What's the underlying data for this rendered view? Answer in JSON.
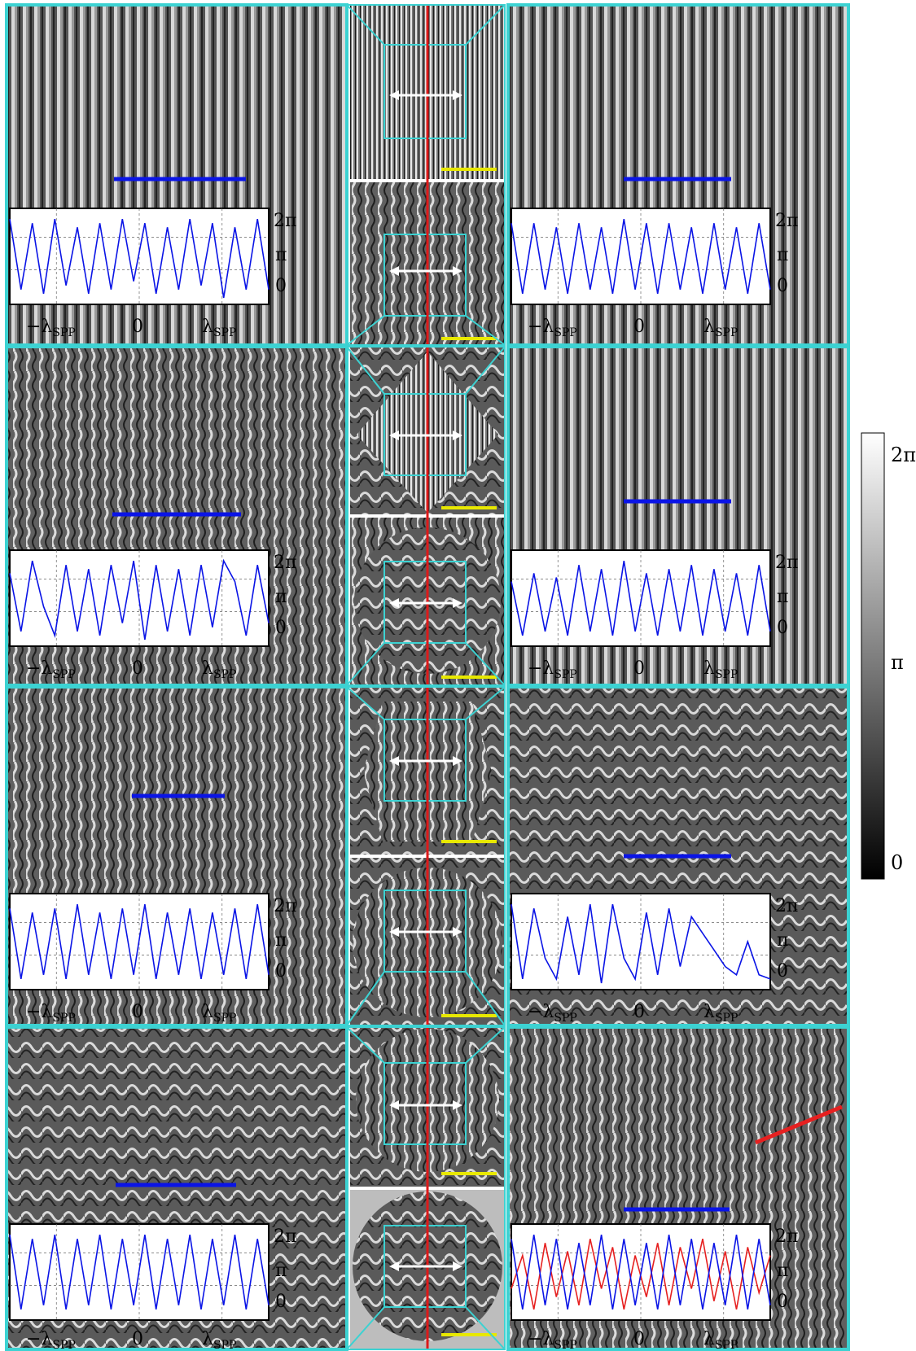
{
  "figure": {
    "plot_y_ticks": [
      "2π",
      "π",
      "0"
    ],
    "plot_x_ticks": {
      "neg": "−λ",
      "neg_sub": "SPP",
      "zero": "0",
      "pos": "λ",
      "pos_sub": "SPP"
    },
    "colorbar": {
      "labels": [
        "2π",
        "π",
        "0"
      ],
      "range": "0 to 2π",
      "gradient": [
        "#000000",
        "#ffffff"
      ]
    },
    "colors": {
      "frame": "#3cd2d2",
      "blue_line": "#0a14e6",
      "red_line": "#e62020",
      "yellow_bar": "#e8e800",
      "arrow": "#ffffff",
      "center_red": "#dd1a1a"
    }
  },
  "chart_data": {
    "type": "line",
    "panels": [
      {
        "row": 1,
        "side": "left",
        "series": [
          {
            "values": [
              0.95,
              0.1,
              0.9,
              0.05,
              0.95,
              0.15,
              0.85,
              0.05,
              0.9,
              0.1,
              0.95,
              0.2,
              0.9,
              0.05,
              0.85,
              0.1,
              0.95,
              0.15,
              0.9,
              0.0,
              0.85,
              0.1,
              0.95,
              0.1
            ]
          }
        ]
      },
      {
        "row": 1,
        "side": "right",
        "series": [
          {
            "values": [
              0.9,
              0.05,
              0.9,
              0.1,
              0.85,
              0.05,
              0.9,
              0.1,
              0.85,
              0.05,
              0.95,
              0.1,
              0.9,
              0.05,
              0.9,
              0.1,
              0.85,
              0.05,
              0.9,
              0.1,
              0.85,
              0.05,
              0.9,
              0.1
            ]
          }
        ]
      },
      {
        "row": 2,
        "side": "left",
        "series": [
          {
            "values": [
              0.8,
              0.1,
              0.95,
              0.4,
              0.05,
              0.9,
              0.1,
              0.85,
              0.05,
              0.9,
              0.2,
              0.95,
              0.0,
              0.9,
              0.1,
              0.85,
              0.05,
              0.9,
              0.15,
              0.95,
              0.7,
              0.05,
              0.9,
              0.2
            ]
          }
        ]
      },
      {
        "row": 2,
        "side": "right",
        "series": [
          {
            "values": [
              0.7,
              0.05,
              0.8,
              0.1,
              0.75,
              0.05,
              0.9,
              0.1,
              0.85,
              0.05,
              0.95,
              0.1,
              0.8,
              0.05,
              0.85,
              0.1,
              0.9,
              0.05,
              0.85,
              0.1,
              0.8,
              0.05,
              0.9,
              0.1
            ]
          }
        ]
      },
      {
        "row": 3,
        "side": "left",
        "series": [
          {
            "values": [
              0.9,
              0.05,
              0.85,
              0.1,
              0.9,
              0.05,
              0.95,
              0.1,
              0.85,
              0.05,
              0.9,
              0.1,
              0.95,
              0.05,
              0.85,
              0.1,
              0.9,
              0.05,
              0.85,
              0.1,
              0.9,
              0.05,
              0.95,
              0.1
            ]
          }
        ]
      },
      {
        "row": 3,
        "side": "right",
        "series": [
          {
            "values": [
              0.95,
              0.05,
              0.9,
              0.3,
              0.05,
              0.8,
              0.1,
              0.95,
              0.0,
              0.95,
              0.3,
              0.05,
              0.85,
              0.1,
              0.9,
              0.2,
              0.8,
              0.6,
              0.4,
              0.2,
              0.1,
              0.5,
              0.1,
              0.05
            ]
          }
        ]
      },
      {
        "row": 4,
        "side": "left",
        "series": [
          {
            "values": [
              0.95,
              0.05,
              0.9,
              0.1,
              0.95,
              0.05,
              0.9,
              0.1,
              0.95,
              0.05,
              0.9,
              0.1,
              0.95,
              0.05,
              0.9,
              0.1,
              0.95,
              0.05,
              0.9,
              0.1,
              0.95,
              0.05,
              0.9,
              0.1
            ]
          }
        ]
      },
      {
        "row": 4,
        "side": "right",
        "series": [
          {
            "values": [
              0.9,
              0.05,
              0.95,
              0.1,
              0.9,
              0.05,
              0.85,
              0.1,
              0.95,
              0.05,
              0.9,
              0.1,
              0.85,
              0.05,
              0.95,
              0.1,
              0.9,
              0.05,
              0.85,
              0.1,
              0.95,
              0.05,
              0.9,
              0.1
            ]
          },
          {
            "values": [
              0.3,
              0.7,
              0.05,
              0.85,
              0.2,
              0.75,
              0.1,
              0.9,
              0.3,
              0.8,
              0.05,
              0.7,
              0.2,
              0.85,
              0.1,
              0.8,
              0.3,
              0.9,
              0.15,
              0.75,
              0.05,
              0.8,
              0.25,
              0.7
            ]
          }
        ]
      }
    ]
  }
}
